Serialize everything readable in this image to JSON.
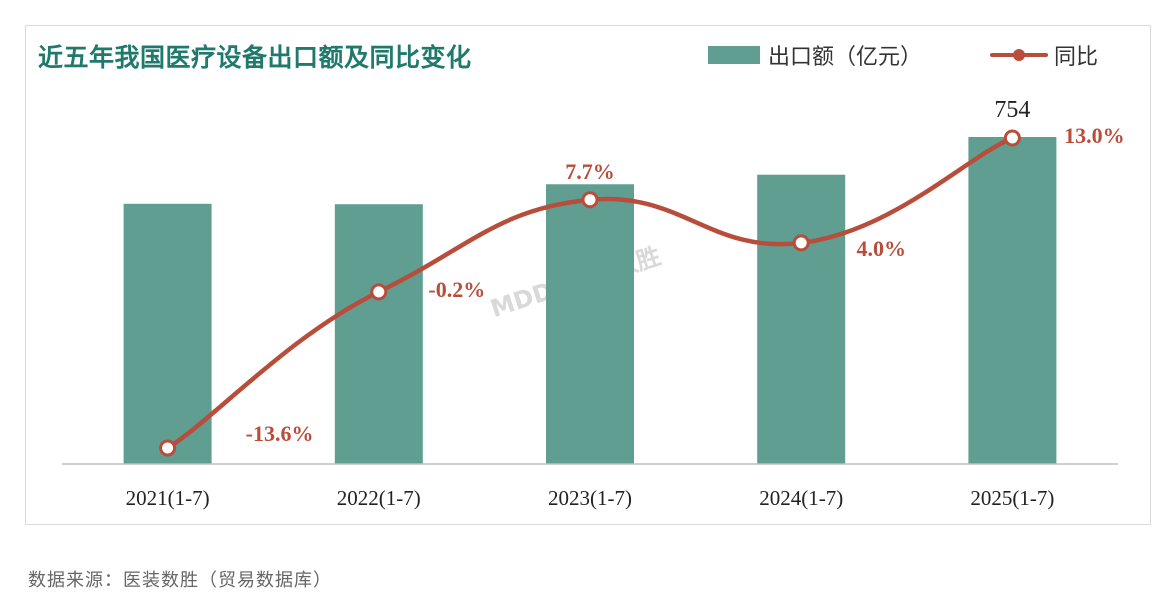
{
  "chart_data": {
    "type": "bar",
    "title": "近五年我国医疗设备出口额及同比变化",
    "categories": [
      "2021(1-7)",
      "2022(1-7)",
      "2023(1-7)",
      "2024(1-7)",
      "2025(1-7)"
    ],
    "series": [
      {
        "name": "出口额（亿元）",
        "type": "bar",
        "values": [
          600,
          599,
          645,
          667,
          754
        ],
        "data_labels": [
          "",
          "",
          "",
          "",
          "754"
        ],
        "color": "#5f9e91"
      },
      {
        "name": "同比",
        "type": "line",
        "values": [
          -13.6,
          -0.2,
          7.7,
          4.0,
          13.0
        ],
        "data_labels": [
          "-13.6%",
          "-0.2%",
          "7.7%",
          "4.0%",
          "13.0%"
        ],
        "color": "#b84d3b"
      }
    ],
    "ylim_bar": [
      0,
      800
    ],
    "ylim_line": [
      -16,
      20
    ],
    "grid": false,
    "legend_position": "top-right"
  },
  "watermark": "MDDI 医装数胜",
  "source": "数据来源：医装数胜（贸易数据库）"
}
